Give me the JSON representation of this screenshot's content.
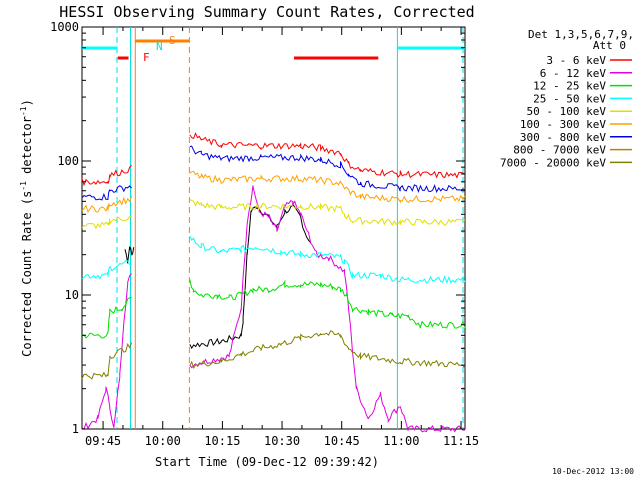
{
  "chart_data": {
    "type": "line",
    "title": "HESSI Observing Summary Count Rates, Corrected",
    "xlabel": "Start Time (09-Dec-12 09:39:42)",
    "ylabel_main": "Corrected Count Rate (s",
    "ylabel_sup1": "-1",
    "ylabel_mid": " detector",
    "ylabel_sup2": "-1",
    "ylabel_end": ")",
    "yscale": "log",
    "xlim_minutes": [
      0,
      96.3
    ],
    "ylim": [
      1,
      1000
    ],
    "x_ticks": [
      {
        "label": "09:45",
        "minutes": 5.3
      },
      {
        "label": "10:00",
        "minutes": 20.3
      },
      {
        "label": "10:15",
        "minutes": 35.3
      },
      {
        "label": "10:30",
        "minutes": 50.3
      },
      {
        "label": "10:45",
        "minutes": 65.3
      },
      {
        "label": "11:00",
        "minutes": 80.3
      },
      {
        "label": "11:15",
        "minutes": 95.3
      }
    ],
    "y_ticks": [
      {
        "label": "1",
        "value": 1
      },
      {
        "label": "10",
        "value": 10
      },
      {
        "label": "100",
        "value": 100
      },
      {
        "label": "1000",
        "value": 1000
      }
    ],
    "legend_header": [
      "Det 1,3,5,6,7,9,",
      "Att 0"
    ],
    "series": [
      {
        "name": "3 - 6 keV",
        "color": "#000000",
        "points": [
          [
            0,
            null
          ],
          [
            10,
            null
          ],
          [
            10.7,
            null
          ],
          [
            10.8,
            22
          ],
          [
            11.5,
            18
          ],
          [
            12,
            23
          ],
          [
            12.5,
            20
          ],
          [
            13,
            22
          ],
          [
            13.4,
            null
          ],
          [
            27,
            null
          ],
          [
            27.1,
            4.2
          ],
          [
            35,
            4.5
          ],
          [
            40,
            5
          ],
          [
            40.5,
            6.5
          ],
          [
            41.5,
            20
          ],
          [
            42.5,
            42
          ],
          [
            44,
            46
          ],
          [
            47,
            38
          ],
          [
            49,
            32
          ],
          [
            51,
            42
          ],
          [
            53,
            45
          ],
          [
            55,
            38
          ],
          [
            56,
            30
          ],
          [
            57.5,
            24
          ],
          [
            58,
            null
          ],
          [
            96.3,
            null
          ]
        ]
      },
      {
        "name": "6 - 12 keV",
        "color": "#e000e0",
        "points": [
          [
            0,
            1
          ],
          [
            4,
            1.2
          ],
          [
            6,
            2
          ],
          [
            7,
            1.5
          ],
          [
            8,
            1
          ],
          [
            9.5,
            2.5
          ],
          [
            10.5,
            6.5
          ],
          [
            11.5,
            12
          ],
          [
            12.5,
            15
          ],
          [
            13.4,
            null
          ],
          [
            27,
            null
          ],
          [
            27.1,
            3
          ],
          [
            37,
            3.5
          ],
          [
            40,
            8
          ],
          [
            41.5,
            35
          ],
          [
            43,
            65
          ],
          [
            44.5,
            42
          ],
          [
            47,
            38
          ],
          [
            49,
            30
          ],
          [
            51,
            45
          ],
          [
            53,
            50
          ],
          [
            55,
            40
          ],
          [
            57,
            28
          ],
          [
            59,
            20
          ],
          [
            62,
            19
          ],
          [
            66,
            15
          ],
          [
            67,
            8
          ],
          [
            69,
            2
          ],
          [
            72,
            1.2
          ],
          [
            75,
            1.8
          ],
          [
            77,
            1.2
          ],
          [
            80,
            1.5
          ],
          [
            82,
            1
          ],
          [
            96.3,
            1
          ]
        ]
      },
      {
        "name": "12 - 25 keV",
        "color": "#00e000",
        "points": [
          [
            0,
            5
          ],
          [
            6.5,
            5
          ],
          [
            7,
            7.5
          ],
          [
            10,
            8
          ],
          [
            12.5,
            9.5
          ],
          [
            13.4,
            null
          ],
          [
            27,
            null
          ],
          [
            27.1,
            13
          ],
          [
            28,
            11
          ],
          [
            30,
            10
          ],
          [
            34,
            10
          ],
          [
            37,
            9.5
          ],
          [
            40,
            10
          ],
          [
            43,
            11
          ],
          [
            47,
            11
          ],
          [
            51,
            12
          ],
          [
            55,
            12
          ],
          [
            60,
            12
          ],
          [
            63,
            11.5
          ],
          [
            65,
            11
          ],
          [
            66.5,
            10
          ],
          [
            68,
            8
          ],
          [
            72,
            7.5
          ],
          [
            78,
            7
          ],
          [
            82,
            7
          ],
          [
            85,
            6
          ],
          [
            96.3,
            6
          ]
        ]
      },
      {
        "name": "25 - 50 keV",
        "color": "#00ffff",
        "points": [
          [
            0,
            14
          ],
          [
            6.5,
            14
          ],
          [
            7,
            16
          ],
          [
            12.5,
            17.5
          ],
          [
            13.4,
            null
          ],
          [
            27,
            null
          ],
          [
            27.1,
            27
          ],
          [
            30,
            23
          ],
          [
            35,
            21
          ],
          [
            40,
            22
          ],
          [
            44,
            23
          ],
          [
            50,
            21
          ],
          [
            55,
            20
          ],
          [
            60,
            20
          ],
          [
            65,
            19
          ],
          [
            66,
            18
          ],
          [
            68,
            14
          ],
          [
            75,
            14
          ],
          [
            80,
            13
          ],
          [
            96.3,
            13
          ]
        ]
      },
      {
        "name": "50 - 100 keV",
        "color": "#e0e000",
        "points": [
          [
            0,
            33
          ],
          [
            6.5,
            33
          ],
          [
            7,
            36
          ],
          [
            12.5,
            38
          ],
          [
            13.4,
            null
          ],
          [
            27,
            null
          ],
          [
            27.1,
            50
          ],
          [
            30,
            47
          ],
          [
            35,
            45
          ],
          [
            45,
            46
          ],
          [
            55,
            46
          ],
          [
            60,
            45
          ],
          [
            65,
            44
          ],
          [
            66,
            40
          ],
          [
            68,
            36
          ],
          [
            80,
            35
          ],
          [
            96.3,
            35
          ]
        ]
      },
      {
        "name": "100 - 300 keV",
        "color": "#ffa000",
        "points": [
          [
            0,
            44
          ],
          [
            6.5,
            44
          ],
          [
            7,
            48
          ],
          [
            12.5,
            52
          ],
          [
            13.4,
            null
          ],
          [
            27,
            null
          ],
          [
            27.1,
            82
          ],
          [
            30,
            76
          ],
          [
            35,
            72
          ],
          [
            45,
            74
          ],
          [
            55,
            74
          ],
          [
            60,
            72
          ],
          [
            65,
            68
          ],
          [
            67,
            60
          ],
          [
            70,
            54
          ],
          [
            80,
            52
          ],
          [
            96.3,
            52
          ]
        ]
      },
      {
        "name": "300 - 800 keV",
        "color": "#0000e0",
        "points": [
          [
            0,
            54
          ],
          [
            6.5,
            54
          ],
          [
            7,
            60
          ],
          [
            12.5,
            65
          ],
          [
            13.4,
            null
          ],
          [
            27,
            null
          ],
          [
            27.1,
            125
          ],
          [
            30,
            112
          ],
          [
            35,
            104
          ],
          [
            45,
            106
          ],
          [
            55,
            106
          ],
          [
            60,
            102
          ],
          [
            65,
            94
          ],
          [
            67,
            80
          ],
          [
            70,
            68
          ],
          [
            80,
            63
          ],
          [
            96.3,
            62
          ]
        ]
      },
      {
        "name": "800 - 7000 keV",
        "color": "#c08000",
        "points": [
          [
            0,
            null
          ],
          [
            96.3,
            null
          ]
        ]
      },
      {
        "name": "7000 - 20000 keV",
        "color": "#808000",
        "points": [
          [
            0,
            2.5
          ],
          [
            6.5,
            2.5
          ],
          [
            7,
            3.5
          ],
          [
            12.5,
            4.2
          ],
          [
            13.4,
            null
          ],
          [
            27,
            null
          ],
          [
            27.1,
            3
          ],
          [
            35,
            3.2
          ],
          [
            40,
            3.6
          ],
          [
            45,
            4
          ],
          [
            50,
            4.3
          ],
          [
            55,
            4.8
          ],
          [
            60,
            5.2
          ],
          [
            65,
            5
          ],
          [
            67,
            4
          ],
          [
            70,
            3.5
          ],
          [
            80,
            3.2
          ],
          [
            96.3,
            3
          ]
        ]
      },
      {
        "name": "3 - 6 keV (top)",
        "color": "#ff0000",
        "hidden_legend": true,
        "points": [
          [
            0,
            70
          ],
          [
            6.5,
            70
          ],
          [
            7,
            78
          ],
          [
            12.5,
            88
          ],
          [
            13.4,
            null
          ],
          [
            27,
            null
          ],
          [
            27.1,
            160
          ],
          [
            30,
            145
          ],
          [
            35,
            132
          ],
          [
            45,
            130
          ],
          [
            55,
            130
          ],
          [
            60,
            125
          ],
          [
            65,
            115
          ],
          [
            67,
            95
          ],
          [
            70,
            85
          ],
          [
            80,
            80
          ],
          [
            96.3,
            78
          ]
        ]
      }
    ],
    "annotations": [
      {
        "text": "F",
        "color": "#ff0000"
      },
      {
        "text": "N",
        "color": "#00e0e0"
      },
      {
        "text": "S",
        "color": "#ff8000"
      }
    ],
    "flag_bars": [
      {
        "name": "night",
        "color": "#00ffff",
        "x1": 0,
        "x2": 8.8
      },
      {
        "name": "night",
        "color": "#00ffff",
        "x1": 79.3,
        "x2": 96.3
      },
      {
        "name": "flare",
        "color": "#ff0000",
        "x1": 9.0,
        "x2": 11.7
      },
      {
        "name": "flare",
        "color": "#ff0000",
        "x1": 53.3,
        "x2": 74.5
      },
      {
        "name": "saa",
        "color": "#ff8000",
        "x1": 13.4,
        "x2": 27.0
      }
    ],
    "vertical_lines": [
      {
        "name": "night-start",
        "color": "#00e0e0",
        "dashed": true,
        "x": 8.8
      },
      {
        "name": "night-end",
        "color": "#00e0e0",
        "dashed": false,
        "x": 12.2
      },
      {
        "name": "saa-start",
        "color": "#ff8000",
        "dashed": false,
        "x": 13.4
      },
      {
        "name": "saa-end",
        "color": "#ff8000",
        "dashed": true,
        "x": 27.0
      },
      {
        "name": "night2-start",
        "color": "#00e0e0",
        "dashed": false,
        "x": 79.3
      },
      {
        "name": "night2-end",
        "color": "#00e0e0",
        "dashed": true,
        "x": 95.8
      }
    ],
    "legend": [
      {
        "label": "3 - 6 keV",
        "color": "#ff0000"
      },
      {
        "label": "6 - 12 keV",
        "color": "#e000e0"
      },
      {
        "label": "12 - 25 keV",
        "color": "#00e000"
      },
      {
        "label": "25 - 50 keV",
        "color": "#00ffff"
      },
      {
        "label": "50 - 100 keV",
        "color": "#e0e000"
      },
      {
        "label": "100 - 300 keV",
        "color": "#ffa000"
      },
      {
        "label": "300 - 800 keV",
        "color": "#0000e0"
      },
      {
        "label": "800 - 7000 keV",
        "color": "#c08000"
      },
      {
        "label": "7000 - 20000 keV",
        "color": "#808000"
      }
    ],
    "footer_date": "10-Dec-2012 13:00"
  }
}
